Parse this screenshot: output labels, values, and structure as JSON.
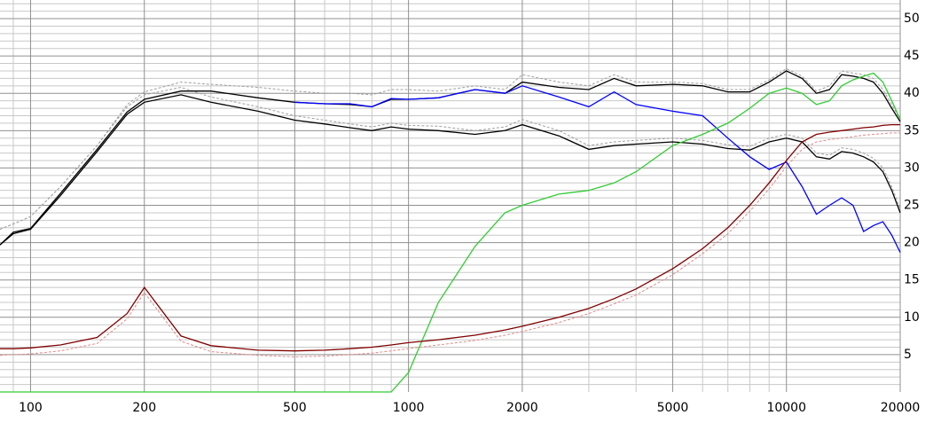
{
  "chart_data": {
    "type": "line",
    "xscale": "log",
    "xlim": [
      83,
      20000
    ],
    "ylim": [
      0,
      52.5
    ],
    "xticks": [
      100,
      200,
      500,
      1000,
      2000,
      5000,
      10000,
      20000
    ],
    "yticks": [
      5,
      10,
      15,
      20,
      25,
      30,
      35,
      40,
      45,
      50
    ],
    "x_minor_ticks": [
      90,
      300,
      400,
      600,
      700,
      800,
      900,
      3000,
      4000,
      6000,
      7000,
      8000,
      9000
    ],
    "y_minor_ticks": [
      1,
      2,
      3,
      4,
      6,
      7,
      8,
      9,
      11,
      12,
      13,
      14,
      16,
      17,
      18,
      19,
      21,
      22,
      23,
      24,
      26,
      27,
      28,
      29,
      31,
      32,
      33,
      34,
      36,
      37,
      38,
      39,
      41,
      42,
      43,
      44,
      46,
      47,
      48,
      49,
      51,
      52
    ],
    "grid": true,
    "x": [
      83,
      90,
      100,
      120,
      150,
      180,
      200,
      250,
      300,
      400,
      500,
      600,
      700,
      800,
      900,
      1000,
      1200,
      1500,
      1800,
      2000,
      2500,
      3000,
      3500,
      4000,
      5000,
      6000,
      7000,
      8000,
      9000,
      10000,
      11000,
      12000,
      13000,
      14000,
      15000,
      16000,
      17000,
      18000,
      19000,
      20000
    ],
    "series": [
      {
        "color": "#a0a0a0",
        "dashed": true,
        "values": [
          21.8,
          22.5,
          23.5,
          27.5,
          33,
          38.5,
          40.2,
          41.5,
          41.2,
          40.8,
          40.3,
          40,
          40,
          39.8,
          40.5,
          40.5,
          40.3,
          41,
          40.5,
          42.5,
          41.5,
          41,
          42.5,
          41.5,
          41.5,
          41.3,
          40.5,
          40.5,
          41.8,
          43.3,
          42.3,
          40.3,
          41,
          43,
          42.7,
          42.5,
          42,
          40.5,
          38.5,
          36.5
        ]
      },
      {
        "color": "#a0a0a0",
        "dashed": true,
        "values": [
          21.8,
          22.5,
          23.5,
          27.5,
          33,
          38.2,
          39.8,
          40.8,
          39.5,
          38.2,
          37,
          36.4,
          35.9,
          35.5,
          36,
          35.7,
          35.6,
          35,
          35.5,
          36.5,
          35,
          33,
          33.5,
          33.7,
          34,
          33.7,
          33.1,
          32.9,
          34,
          34.5,
          34,
          32,
          31.7,
          32.7,
          32.5,
          32,
          31.3,
          30,
          27.5,
          24.5
        ]
      },
      {
        "color": "#e08a8a",
        "dashed": true,
        "values": [
          4.9,
          5,
          5.1,
          5.5,
          6.5,
          9.8,
          13.3,
          6.8,
          5.4,
          4.9,
          4.7,
          4.8,
          5,
          5.2,
          5.5,
          5.8,
          6.3,
          6.9,
          7.6,
          8.1,
          9.3,
          10.5,
          11.8,
          13,
          15.7,
          18.5,
          21.2,
          24.2,
          27.2,
          30.2,
          32.5,
          33.5,
          33.8,
          34,
          34.2,
          34.4,
          34.5,
          34.6,
          34.7,
          34.7
        ]
      },
      {
        "color": "#000000",
        "dashed": false,
        "values": [
          19.7,
          21.2,
          21.8,
          26.3,
          32.2,
          37.2,
          38.8,
          39.8,
          38.8,
          37.6,
          36.4,
          35.9,
          35.4,
          35,
          35.5,
          35.2,
          35,
          34.5,
          35,
          35.8,
          34.3,
          32.5,
          33,
          33.2,
          33.5,
          33.2,
          32.6,
          32.4,
          33.5,
          34,
          33.5,
          31.5,
          31.2,
          32.2,
          32,
          31.5,
          30.8,
          29.5,
          27,
          24
        ]
      },
      {
        "color": "#000000",
        "dashed": false,
        "values": [
          19.7,
          21.4,
          21.9,
          26.6,
          32.5,
          37.5,
          39.2,
          40.3,
          40.3,
          39.4,
          38.8,
          38.6,
          38.5,
          38.2,
          39.2,
          39.2,
          39.4,
          40.5,
          40,
          41.5,
          40.8,
          40.5,
          42,
          41,
          41.2,
          41,
          40.2,
          40.2,
          41.5,
          43,
          42,
          40,
          40.5,
          42.5,
          42.3,
          42,
          41.5,
          40,
          38,
          36.2
        ]
      },
      {
        "color": "#0000ff",
        "dashed": false,
        "values": [
          null,
          null,
          null,
          null,
          null,
          null,
          null,
          null,
          null,
          null,
          38.8,
          38.6,
          38.6,
          38.2,
          39.3,
          39.2,
          39.4,
          40.5,
          40,
          41,
          39.5,
          38.2,
          40.2,
          38.5,
          37.6,
          37,
          34,
          31.5,
          29.8,
          30.8,
          27.5,
          23.8,
          25,
          26,
          25,
          21.5,
          22.3,
          22.8,
          21,
          18.7
        ]
      },
      {
        "color": "#33cc33",
        "dashed": false,
        "values": [
          0,
          0,
          0,
          0,
          0,
          0,
          0,
          0,
          0,
          0,
          0,
          0,
          0,
          0,
          0,
          2.6,
          12,
          19.5,
          24,
          25,
          26.5,
          27,
          28,
          29.5,
          33,
          34.5,
          36,
          38,
          40,
          40.7,
          40,
          38.5,
          39,
          41,
          41.8,
          42.3,
          42.7,
          41.5,
          39,
          36.5
        ]
      },
      {
        "color": "#800000",
        "dashed": false,
        "values": [
          5.8,
          5.8,
          5.9,
          6.3,
          7.3,
          10.5,
          14,
          7.5,
          6.2,
          5.6,
          5.5,
          5.6,
          5.8,
          6,
          6.3,
          6.6,
          7,
          7.6,
          8.3,
          8.8,
          10,
          11.2,
          12.5,
          13.8,
          16.5,
          19.2,
          22,
          25,
          28,
          31,
          33.5,
          34.5,
          34.8,
          35,
          35.2,
          35.4,
          35.5,
          35.7,
          35.8,
          35.8
        ]
      }
    ]
  }
}
